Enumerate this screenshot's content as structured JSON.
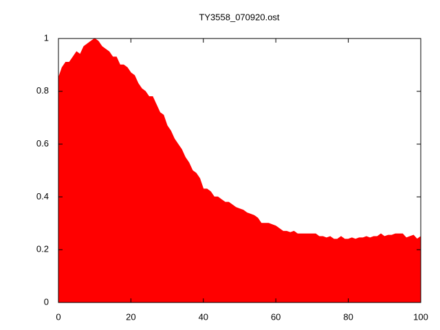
{
  "chart_data": {
    "type": "area",
    "title": "TY3558_070920.ost",
    "color": "#ff0000",
    "xlim": [
      0,
      100
    ],
    "ylim": [
      0,
      1
    ],
    "xticks": [
      0,
      20,
      40,
      60,
      80,
      100
    ],
    "yticks": [
      0,
      0.2,
      0.4,
      0.6,
      0.8,
      1
    ],
    "x": [
      0,
      1,
      2,
      3,
      4,
      5,
      6,
      7,
      8,
      9,
      10,
      11,
      12,
      13,
      14,
      15,
      16,
      17,
      18,
      19,
      20,
      21,
      22,
      23,
      24,
      25,
      26,
      27,
      28,
      29,
      30,
      31,
      32,
      33,
      34,
      35,
      36,
      37,
      38,
      39,
      40,
      41,
      42,
      43,
      44,
      45,
      46,
      47,
      48,
      49,
      50,
      51,
      52,
      53,
      54,
      55,
      56,
      57,
      58,
      59,
      60,
      61,
      62,
      63,
      64,
      65,
      66,
      67,
      68,
      69,
      70,
      71,
      72,
      73,
      74,
      75,
      76,
      77,
      78,
      79,
      80,
      81,
      82,
      83,
      84,
      85,
      86,
      87,
      88,
      89,
      90,
      91,
      92,
      93,
      94,
      95,
      96,
      97,
      98,
      99,
      100
    ],
    "values": [
      0.85,
      0.89,
      0.91,
      0.91,
      0.93,
      0.95,
      0.94,
      0.97,
      0.98,
      0.99,
      1.0,
      0.99,
      0.97,
      0.96,
      0.95,
      0.93,
      0.93,
      0.9,
      0.9,
      0.89,
      0.87,
      0.86,
      0.83,
      0.81,
      0.8,
      0.78,
      0.78,
      0.75,
      0.72,
      0.71,
      0.67,
      0.65,
      0.62,
      0.6,
      0.58,
      0.55,
      0.53,
      0.5,
      0.49,
      0.47,
      0.43,
      0.43,
      0.42,
      0.4,
      0.4,
      0.39,
      0.38,
      0.38,
      0.37,
      0.36,
      0.355,
      0.35,
      0.34,
      0.335,
      0.33,
      0.32,
      0.3,
      0.3,
      0.3,
      0.295,
      0.29,
      0.28,
      0.27,
      0.27,
      0.265,
      0.27,
      0.26,
      0.26,
      0.26,
      0.26,
      0.26,
      0.26,
      0.25,
      0.25,
      0.245,
      0.25,
      0.24,
      0.24,
      0.25,
      0.24,
      0.24,
      0.245,
      0.24,
      0.245,
      0.245,
      0.25,
      0.245,
      0.25,
      0.25,
      0.26,
      0.25,
      0.255,
      0.255,
      0.26,
      0.26,
      0.26,
      0.245,
      0.25,
      0.255,
      0.24,
      0.25
    ]
  }
}
